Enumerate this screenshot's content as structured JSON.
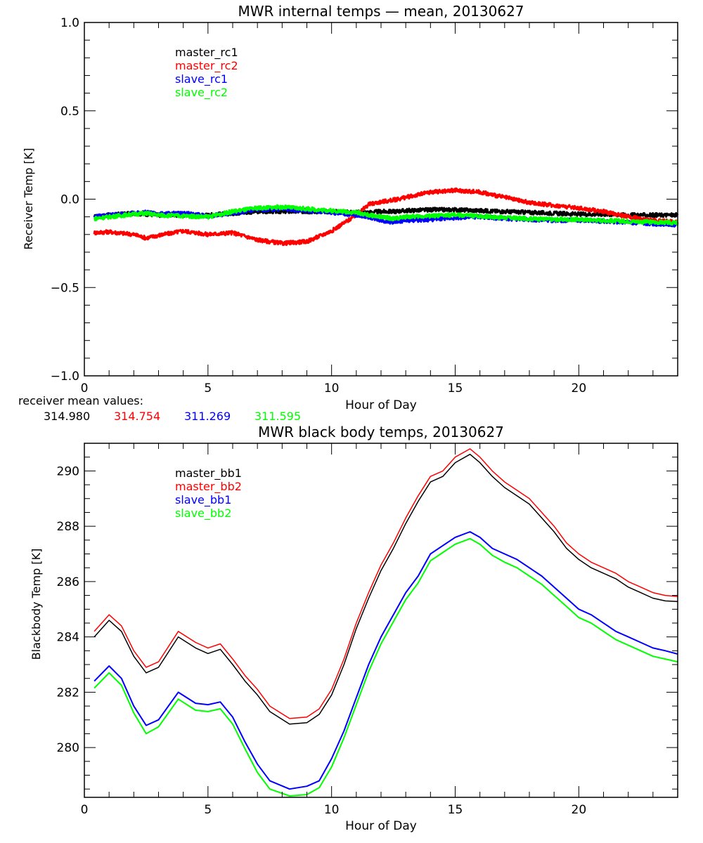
{
  "colors": {
    "master_1": "#000000",
    "master_2": "#ff0000",
    "slave_1": "#0000ff",
    "slave_2": "#00ff00",
    "axis": "#000000",
    "background": "#ffffff"
  },
  "receiver_means": {
    "label": "receiver mean values:",
    "values": [
      "314.980",
      "314.754",
      "311.269",
      "311.595"
    ]
  },
  "chart_data": [
    {
      "type": "line",
      "title": "MWR internal temps — mean, 20130627",
      "xlabel": "Hour of Day",
      "ylabel": "Receiver Temp [K]",
      "xlim": [
        0,
        24
      ],
      "ylim": [
        -1.0,
        1.0
      ],
      "xticks": [
        0,
        5,
        10,
        15,
        20
      ],
      "xtick_labels": [
        "0",
        "5",
        "10",
        "15",
        "20"
      ],
      "x_minor_step": 1,
      "yticks": [
        -1.0,
        -0.5,
        0.0,
        0.5,
        1.0
      ],
      "ytick_labels": [
        "−1.0",
        "−0.5",
        "0.0",
        "0.5",
        "1.0"
      ],
      "y_minor_step": 0.1,
      "grid": false,
      "legend_position": "top-left-inside",
      "noisy": true,
      "x": [
        0.4,
        1,
        2,
        2.5,
        3,
        4,
        5,
        6,
        7,
        8,
        9,
        10,
        11,
        11.5,
        12,
        12.5,
        13,
        14,
        15,
        16,
        17,
        18,
        19,
        20,
        21,
        22,
        23,
        24
      ],
      "series": [
        {
          "name": "master_rc1",
          "color": "#000000",
          "values": [
            -0.1,
            -0.09,
            -0.08,
            -0.085,
            -0.09,
            -0.09,
            -0.09,
            -0.08,
            -0.07,
            -0.07,
            -0.07,
            -0.07,
            -0.075,
            -0.075,
            -0.07,
            -0.07,
            -0.065,
            -0.06,
            -0.06,
            -0.065,
            -0.07,
            -0.075,
            -0.08,
            -0.085,
            -0.085,
            -0.09,
            -0.09,
            -0.09
          ]
        },
        {
          "name": "master_rc2",
          "color": "#ff0000",
          "values": [
            -0.19,
            -0.185,
            -0.2,
            -0.22,
            -0.205,
            -0.18,
            -0.2,
            -0.19,
            -0.23,
            -0.25,
            -0.24,
            -0.18,
            -0.09,
            -0.03,
            -0.015,
            -0.005,
            0.01,
            0.04,
            0.05,
            0.04,
            0.01,
            -0.02,
            -0.035,
            -0.05,
            -0.07,
            -0.1,
            -0.12,
            -0.13
          ]
        },
        {
          "name": "slave_rc1",
          "color": "#0000ff",
          "values": [
            -0.1,
            -0.09,
            -0.08,
            -0.075,
            -0.085,
            -0.08,
            -0.095,
            -0.08,
            -0.06,
            -0.055,
            -0.065,
            -0.075,
            -0.09,
            -0.1,
            -0.12,
            -0.13,
            -0.12,
            -0.115,
            -0.105,
            -0.1,
            -0.11,
            -0.115,
            -0.12,
            -0.12,
            -0.125,
            -0.13,
            -0.14,
            -0.145
          ]
        },
        {
          "name": "slave_rc2",
          "color": "#00ff00",
          "values": [
            -0.11,
            -0.1,
            -0.085,
            -0.08,
            -0.09,
            -0.095,
            -0.1,
            -0.07,
            -0.05,
            -0.045,
            -0.055,
            -0.065,
            -0.075,
            -0.09,
            -0.1,
            -0.11,
            -0.1,
            -0.095,
            -0.09,
            -0.095,
            -0.105,
            -0.11,
            -0.115,
            -0.115,
            -0.12,
            -0.125,
            -0.13,
            -0.135
          ]
        }
      ]
    },
    {
      "type": "line",
      "title": "MWR black body temps, 20130627",
      "xlabel": "Hour of Day",
      "ylabel": "Blackbody Temp [K]",
      "xlim": [
        0,
        24
      ],
      "ylim": [
        278.2,
        291.0
      ],
      "xticks": [
        0,
        5,
        10,
        15,
        20
      ],
      "xtick_labels": [
        "0",
        "5",
        "10",
        "15",
        "20"
      ],
      "x_minor_step": 1,
      "yticks": [
        280,
        282,
        284,
        286,
        288,
        290
      ],
      "ytick_labels": [
        "280",
        "282",
        "284",
        "286",
        "288",
        "290"
      ],
      "y_minor_step": 0.5,
      "grid": false,
      "legend_position": "top-left-inside",
      "noisy": false,
      "x": [
        0.4,
        1.0,
        1.5,
        2.0,
        2.5,
        3.0,
        3.8,
        4.5,
        5.0,
        5.5,
        6.0,
        6.5,
        7.0,
        7.5,
        8.3,
        9.0,
        9.5,
        10.0,
        10.5,
        11.0,
        11.5,
        12.0,
        12.5,
        13.0,
        13.5,
        14.0,
        14.5,
        15.0,
        15.6,
        16.0,
        16.5,
        17.0,
        17.5,
        18.0,
        18.5,
        19.0,
        19.5,
        20.0,
        20.5,
        21.0,
        21.5,
        22.0,
        22.5,
        23.0,
        23.5,
        24.0
      ],
      "series": [
        {
          "name": "master_bb1",
          "color": "#000000",
          "values": [
            284.0,
            284.6,
            284.2,
            283.3,
            282.7,
            282.9,
            284.0,
            283.6,
            283.4,
            283.55,
            283.0,
            282.4,
            281.9,
            281.3,
            280.85,
            280.9,
            281.2,
            281.9,
            283.0,
            284.3,
            285.4,
            286.4,
            287.2,
            288.1,
            288.9,
            289.6,
            289.8,
            290.3,
            290.6,
            290.3,
            289.8,
            289.4,
            289.1,
            288.8,
            288.3,
            287.8,
            287.2,
            286.8,
            286.5,
            286.3,
            286.1,
            285.8,
            285.6,
            285.4,
            285.3,
            285.28
          ]
        },
        {
          "name": "master_bb2",
          "color": "#ff0000",
          "values": [
            284.2,
            284.8,
            284.4,
            283.5,
            282.9,
            283.1,
            284.2,
            283.8,
            283.6,
            283.75,
            283.2,
            282.6,
            282.1,
            281.5,
            281.05,
            281.1,
            281.4,
            282.1,
            283.2,
            284.5,
            285.6,
            286.6,
            287.4,
            288.3,
            289.1,
            289.8,
            290.0,
            290.5,
            290.8,
            290.5,
            290.0,
            289.6,
            289.3,
            289.0,
            288.5,
            288.0,
            287.4,
            287.0,
            286.7,
            286.5,
            286.3,
            286.0,
            285.8,
            285.6,
            285.5,
            285.46
          ]
        },
        {
          "name": "slave_bb1",
          "color": "#0000ff",
          "values": [
            282.4,
            282.95,
            282.5,
            281.5,
            280.8,
            281.0,
            282.0,
            281.6,
            281.55,
            281.65,
            281.1,
            280.2,
            279.4,
            278.8,
            278.5,
            278.6,
            278.8,
            279.6,
            280.6,
            281.8,
            283.0,
            284.0,
            284.8,
            285.6,
            286.2,
            287.0,
            287.3,
            287.6,
            287.8,
            287.6,
            287.2,
            287.0,
            286.8,
            286.5,
            286.2,
            285.8,
            285.4,
            285.0,
            284.8,
            284.5,
            284.2,
            284.0,
            283.8,
            283.6,
            283.5,
            283.38
          ]
        },
        {
          "name": "slave_bb2",
          "color": "#00ff00",
          "values": [
            282.15,
            282.7,
            282.25,
            281.25,
            280.5,
            280.75,
            281.75,
            281.35,
            281.3,
            281.4,
            280.85,
            279.95,
            279.1,
            278.5,
            278.25,
            278.3,
            278.55,
            279.3,
            280.35,
            281.55,
            282.75,
            283.75,
            284.55,
            285.35,
            285.95,
            286.75,
            287.05,
            287.35,
            287.55,
            287.35,
            286.95,
            286.7,
            286.5,
            286.2,
            285.9,
            285.5,
            285.1,
            284.7,
            284.5,
            284.2,
            283.9,
            283.7,
            283.5,
            283.3,
            283.2,
            283.1
          ]
        }
      ]
    }
  ]
}
